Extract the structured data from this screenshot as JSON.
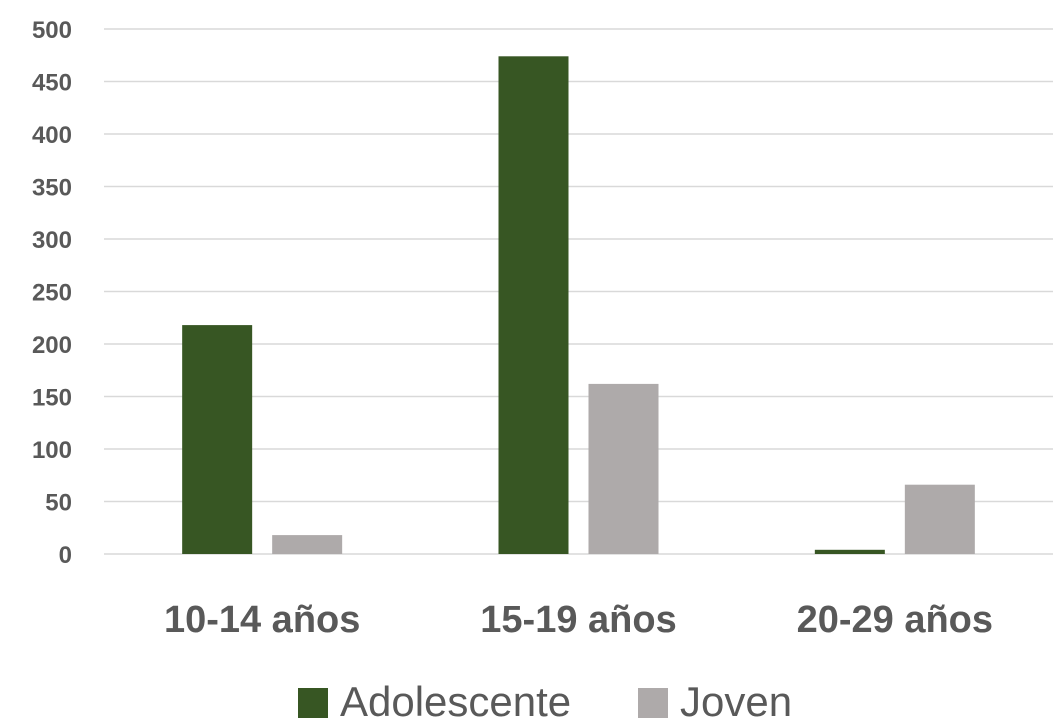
{
  "chart_data": {
    "type": "bar",
    "title": "",
    "xlabel": "",
    "ylabel": "",
    "categories": [
      "10-14 años",
      "15-19 años",
      "20-29 años"
    ],
    "series": [
      {
        "name": "Adolescente",
        "color": "#375623",
        "values": [
          218,
          474,
          4
        ]
      },
      {
        "name": "Joven",
        "color": "#aeaaaa",
        "values": [
          18,
          162,
          66
        ]
      }
    ],
    "ylim": [
      0,
      500
    ],
    "yticks": [
      0,
      50,
      100,
      150,
      200,
      250,
      300,
      350,
      400,
      450,
      500
    ],
    "grid": true,
    "legend_position": "bottom"
  }
}
